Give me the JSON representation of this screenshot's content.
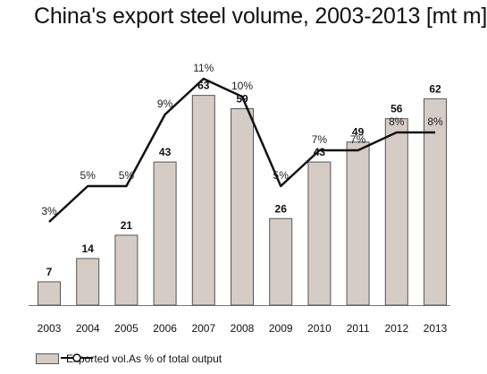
{
  "chart_data": {
    "type": "bar",
    "title": "China's export steel volume, 2003-2013 [mt m]",
    "categories": [
      "2003",
      "2004",
      "2005",
      "2006",
      "2007",
      "2008",
      "2009",
      "2010",
      "2011",
      "2012",
      "2013"
    ],
    "series": [
      {
        "name": "Exported vol.",
        "type": "bar",
        "values": [
          7,
          14,
          21,
          43,
          63,
          59,
          26,
          43,
          49,
          56,
          62
        ]
      },
      {
        "name": "As % of total output",
        "type": "line",
        "values": [
          3,
          5,
          5,
          9,
          11,
          10,
          5,
          7,
          7,
          8,
          8
        ],
        "labels": [
          "3%",
          "5%",
          "5%",
          "9%",
          "11%",
          "10%",
          "5%",
          "7%",
          "7%",
          "8%",
          "8%"
        ]
      }
    ],
    "colors": {
      "bar_fill": "#d6ccc6",
      "bar_stroke": "#555555",
      "line": "#111111"
    },
    "legend": "bottom-left"
  }
}
